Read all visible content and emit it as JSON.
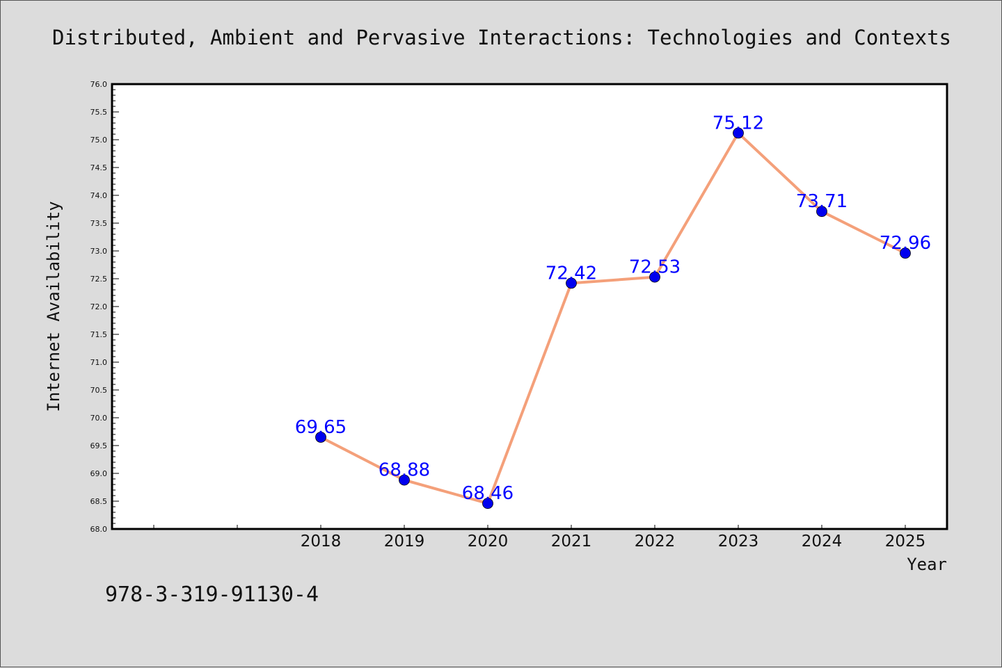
{
  "figure": {
    "title": "Distributed, Ambient and Pervasive Interactions: Technologies and Contexts",
    "footer_text": "978-3-319-91130-4"
  },
  "colors": {
    "background": "#dcdcdc",
    "plot_area": "#ffffff",
    "line": "#f4a07a",
    "marker": "#0000ee",
    "data_label": "#0000ff"
  },
  "chart_data": {
    "type": "line",
    "title": "Distributed, Ambient and Pervasive Interactions: Technologies and Contexts",
    "xlabel": "Year",
    "ylabel": "Internet Availability",
    "categories": [
      "2018",
      "2019",
      "2020",
      "2021",
      "2022",
      "2023",
      "2024",
      "2025"
    ],
    "series": [
      {
        "values": [
          69.65,
          68.88,
          68.46,
          72.42,
          72.53,
          75.12,
          73.71,
          72.96
        ]
      }
    ],
    "data_labels": [
      "69.65",
      "68.88",
      "68.46",
      "72.42",
      "72.53",
      "75.12",
      "73.71",
      "72.96"
    ],
    "ylim": [
      68.0,
      76.0
    ],
    "yticks": [
      "68.0",
      "68.5",
      "69.0",
      "69.5",
      "70.0",
      "70.5",
      "71.0",
      "71.5",
      "72.0",
      "72.5",
      "73.0",
      "73.5",
      "74.0",
      "74.5",
      "75.0",
      "75.5",
      "76.0"
    ],
    "x_slots_before_first": 2,
    "grid": false,
    "legend": "none"
  }
}
